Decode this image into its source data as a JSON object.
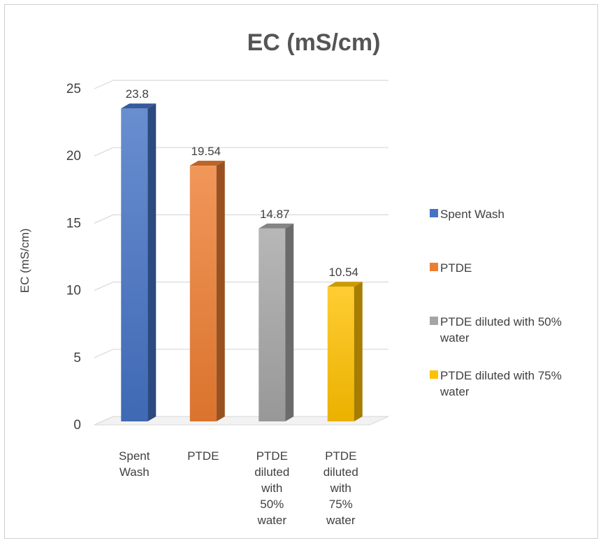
{
  "chart_data": {
    "type": "bar",
    "title": "EC (mS/cm)",
    "ylabel": "EC (mS/cm)",
    "xlabel": "",
    "ylim": [
      0,
      25
    ],
    "yticks": [
      0,
      5,
      10,
      15,
      20,
      25
    ],
    "grid": true,
    "legend_position": "right",
    "categories": [
      "Spent Wash",
      "PTDE",
      "PTDE diluted with 50% water",
      "PTDE diluted with 75% water"
    ],
    "category_label_lines": [
      [
        "Spent",
        "Wash"
      ],
      [
        "PTDE"
      ],
      [
        "PTDE",
        "diluted",
        "with",
        "50%",
        "water"
      ],
      [
        "PTDE",
        "diluted",
        "with",
        "75%",
        "water"
      ]
    ],
    "values": [
      23.8,
      19.54,
      14.87,
      10.54
    ],
    "data_labels": [
      "23.8",
      "19.54",
      "14.87",
      "10.54"
    ],
    "colors": [
      "#4472c4",
      "#ed7d31",
      "#a5a5a5",
      "#ffc000"
    ],
    "legend_entries": [
      {
        "label_lines": [
          "Spent Wash"
        ],
        "color": "#4472c4"
      },
      {
        "label_lines": [
          "PTDE"
        ],
        "color": "#ed7d31"
      },
      {
        "label_lines": [
          "PTDE diluted with 50%",
          "water"
        ],
        "color": "#a5a5a5"
      },
      {
        "label_lines": [
          "PTDE diluted with 75%",
          "water"
        ],
        "color": "#ffc000"
      }
    ]
  }
}
